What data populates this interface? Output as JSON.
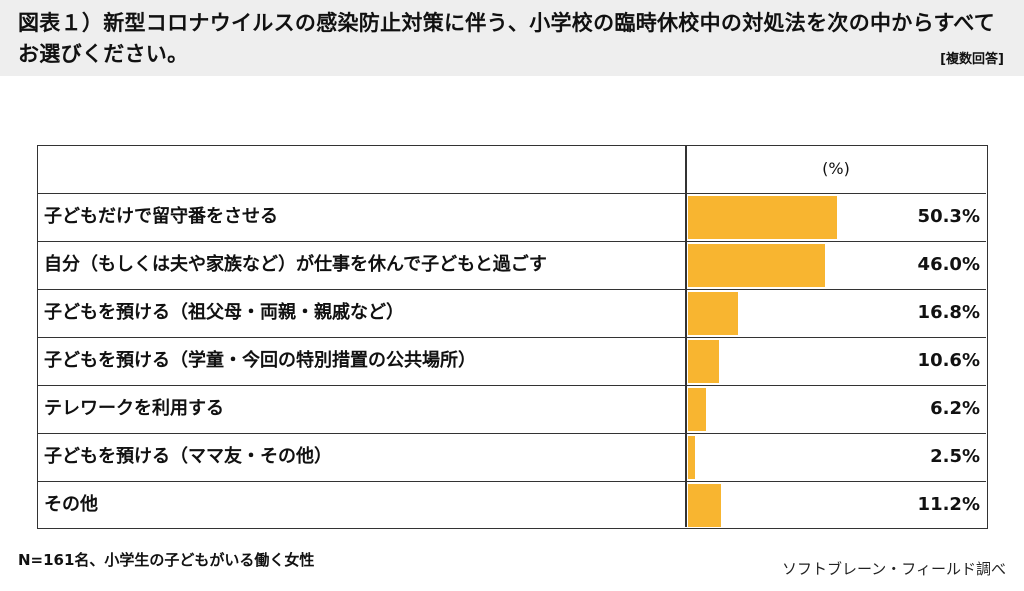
{
  "title": "図表１）新型コロナウイルスの感染防止対策に伴う、小学校の臨時休校中の対処法を次の中からすべてお選びください。",
  "note": "[複数回答]",
  "unit_header": "(%)",
  "footnote": "N=161名、小学生の子どもがいる働く女性",
  "source": "ソフトブレーン・フィールド調べ",
  "colors": {
    "bar": "#f8b530",
    "border": "#333333",
    "header_bg": "#eeeeee"
  },
  "chart_data": {
    "type": "bar",
    "orientation": "horizontal",
    "title": "図表１）新型コロナウイルスの感染防止対策に伴う、小学校の臨時休校中の対処法を次の中からすべてお選びください。",
    "ylabel": "(%)",
    "xlim": [
      0,
      100
    ],
    "grid": false,
    "categories": [
      "子どもだけで留守番をさせる",
      "自分（もしくは夫や家族など）が仕事を休んで子どもと過ごす",
      "子どもを預ける（祖父母・両親・親戚など）",
      "子どもを預ける（学童・今回の特別措置の公共場所）",
      "テレワークを利用する",
      "子どもを預ける（ママ友・その他）",
      "その他"
    ],
    "values": [
      50.3,
      46.0,
      16.8,
      10.6,
      6.2,
      2.5,
      11.2
    ],
    "value_labels": [
      "50.3%",
      "46.0%",
      "16.8%",
      "10.6%",
      "6.2%",
      "2.5%",
      "11.2%"
    ]
  }
}
